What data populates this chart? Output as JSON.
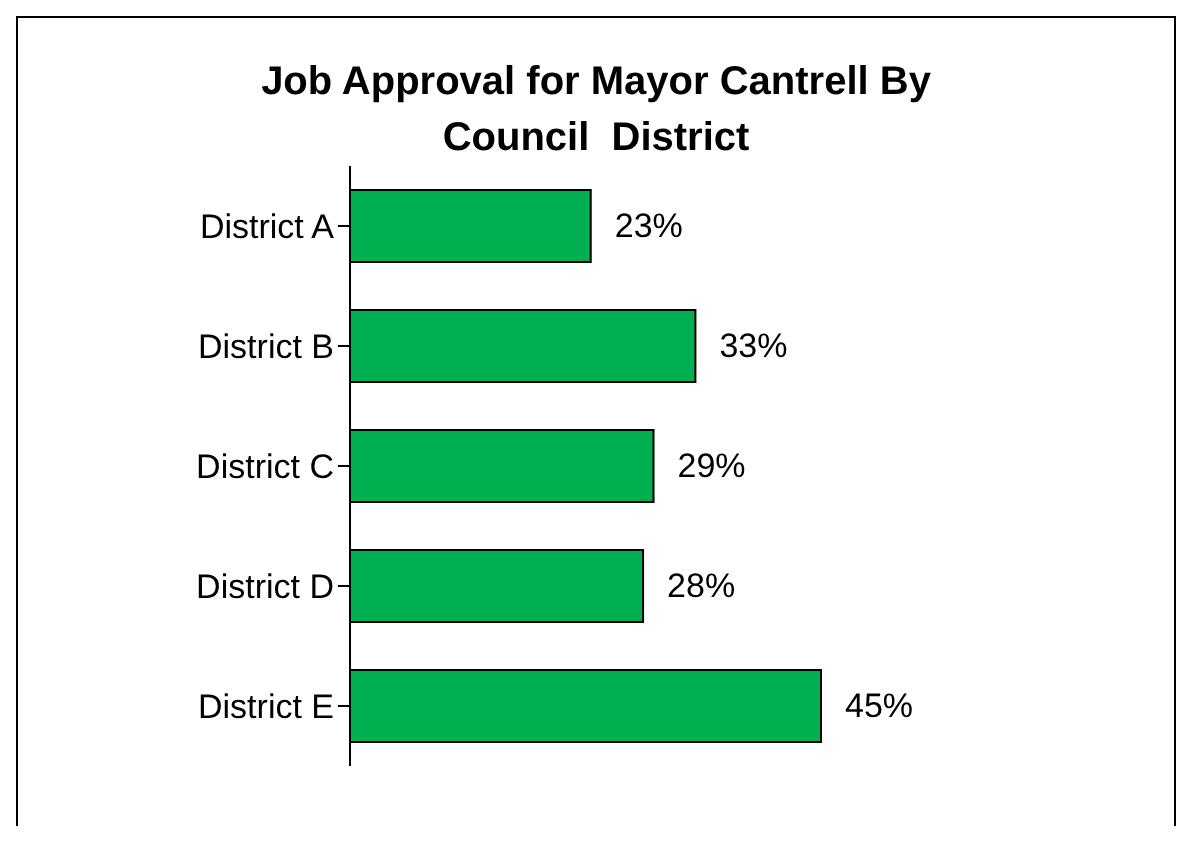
{
  "chart_data": {
    "type": "bar",
    "orientation": "horizontal",
    "title": "Job Approval for Mayor Cantrell By Council  District",
    "categories": [
      "District A",
      "District B",
      "District C",
      "District D",
      "District E"
    ],
    "values": [
      23,
      33,
      29,
      28,
      45
    ],
    "value_labels": [
      "23%",
      "33%",
      "29%",
      "28%",
      "45%"
    ],
    "color": "#00b050",
    "grid": false,
    "legend": false
  }
}
